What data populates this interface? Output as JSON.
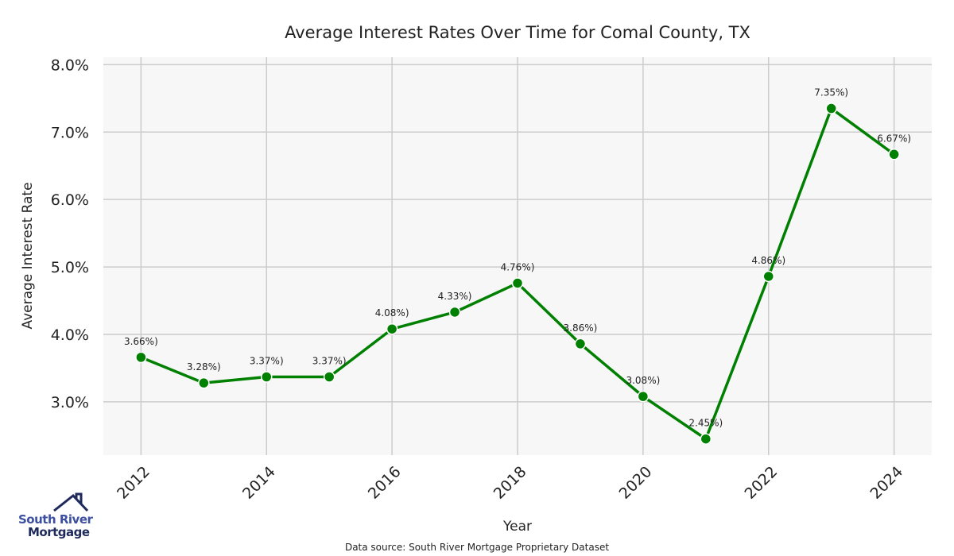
{
  "chart_data": {
    "type": "line",
    "title": "Average Interest Rates Over Time for Comal County, TX",
    "xlabel": "Year",
    "ylabel": "Average Interest Rate",
    "x": [
      2012,
      2013,
      2014,
      2015,
      2016,
      2017,
      2018,
      2019,
      2020,
      2021,
      2022,
      2023,
      2024
    ],
    "values": [
      3.66,
      3.28,
      3.37,
      3.37,
      4.08,
      4.33,
      4.76,
      3.86,
      3.08,
      2.45,
      4.86,
      7.35,
      6.67
    ],
    "data_labels": [
      "3.66%)",
      "3.28%)",
      "3.37%)",
      "3.37%)",
      "4.08%)",
      "4.33%)",
      "4.76%)",
      "3.86%)",
      "3.08%)",
      "2.45%)",
      "4.86%)",
      "7.35%)",
      "6.67%)"
    ],
    "xticks": [
      "2012",
      "2014",
      "2016",
      "2018",
      "2020",
      "2022",
      "2024"
    ],
    "yticks": [
      "3.0%",
      "4.0%",
      "5.0%",
      "6.0%",
      "7.0%",
      "8.0%"
    ],
    "ytick_values": [
      3,
      4,
      5,
      6,
      7,
      8
    ],
    "xlim": [
      2011.4,
      2024.6
    ],
    "ylim": [
      2.21,
      8.11
    ],
    "grid": true,
    "line_color": "#008000",
    "source": "Data source: South River Mortgage Proprietary Dataset"
  },
  "logo": {
    "line1": "South River",
    "line2": "Mortgage"
  }
}
